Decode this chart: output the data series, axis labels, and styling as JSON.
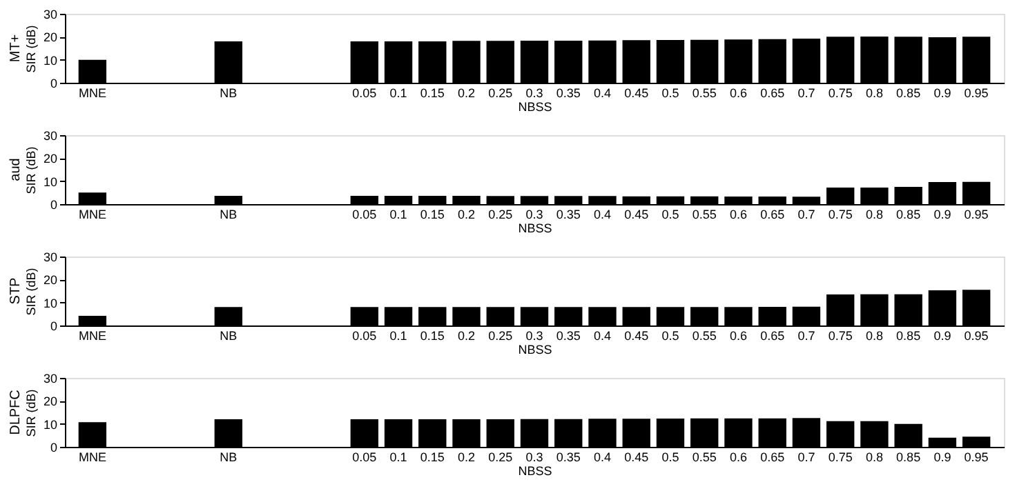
{
  "chart_data": [
    {
      "type": "bar",
      "title": "MT+",
      "xlabel": "NBSS",
      "ylabel": "SIR (dB)",
      "categories": [
        "MNE",
        null,
        null,
        null,
        "NB",
        null,
        null,
        null,
        "0.05",
        "0.1",
        "0.15",
        "0.2",
        "0.25",
        "0.3",
        "0.35",
        "0.4",
        "0.45",
        "0.5",
        "0.55",
        "0.6",
        "0.65",
        "0.7",
        "0.75",
        "0.8",
        "0.85",
        "0.9",
        "0.95"
      ],
      "values": [
        10,
        null,
        null,
        null,
        18,
        null,
        null,
        null,
        18,
        18,
        18,
        18.2,
        18.2,
        18.3,
        18.3,
        18.4,
        18.5,
        18.6,
        18.7,
        18.8,
        19,
        19.2,
        20,
        20.1,
        20,
        19.8,
        20
      ],
      "color": "#000000",
      "ylim": [
        0,
        30
      ],
      "yticks": [
        0,
        10,
        20,
        30
      ],
      "grid": false
    },
    {
      "type": "bar",
      "title": "aud",
      "xlabel": "NBSS",
      "ylabel": "SIR (dB)",
      "categories": [
        "MNE",
        null,
        null,
        null,
        "NB",
        null,
        null,
        null,
        "0.05",
        "0.1",
        "0.15",
        "0.2",
        "0.25",
        "0.3",
        "0.35",
        "0.4",
        "0.45",
        "0.5",
        "0.55",
        "0.6",
        "0.65",
        "0.7",
        "0.75",
        "0.8",
        "0.85",
        "0.9",
        "0.95"
      ],
      "values": [
        5,
        null,
        null,
        null,
        3.6,
        null,
        null,
        null,
        3.6,
        3.6,
        3.6,
        3.6,
        3.5,
        3.5,
        3.5,
        3.5,
        3.4,
        3.4,
        3.4,
        3.3,
        3.3,
        3.2,
        7.2,
        7.2,
        7.5,
        9.6,
        9.7
      ],
      "color": "#000000",
      "ylim": [
        0,
        30
      ],
      "yticks": [
        0,
        10,
        20,
        30
      ],
      "grid": false
    },
    {
      "type": "bar",
      "title": "STP",
      "xlabel": "NBSS",
      "ylabel": "SIR (dB)",
      "categories": [
        "MNE",
        null,
        null,
        null,
        "NB",
        null,
        null,
        null,
        "0.05",
        "0.1",
        "0.15",
        "0.2",
        "0.25",
        "0.3",
        "0.35",
        "0.4",
        "0.45",
        "0.5",
        "0.55",
        "0.6",
        "0.65",
        "0.7",
        "0.75",
        "0.8",
        "0.85",
        "0.9",
        "0.95"
      ],
      "values": [
        4.2,
        null,
        null,
        null,
        8,
        null,
        null,
        null,
        8,
        8,
        8,
        8,
        8,
        8,
        8,
        8,
        8,
        8,
        8,
        8,
        8.1,
        8.2,
        13.5,
        13.6,
        13.6,
        15.3,
        15.5
      ],
      "color": "#000000",
      "ylim": [
        0,
        30
      ],
      "yticks": [
        0,
        10,
        20,
        30
      ],
      "grid": false
    },
    {
      "type": "bar",
      "title": "DLPFC",
      "xlabel": "NBSS",
      "ylabel": "SIR (dB)",
      "categories": [
        "MNE",
        null,
        null,
        null,
        "NB",
        null,
        null,
        null,
        "0.05",
        "0.1",
        "0.15",
        "0.2",
        "0.25",
        "0.3",
        "0.35",
        "0.4",
        "0.45",
        "0.5",
        "0.55",
        "0.6",
        "0.65",
        "0.7",
        "0.75",
        "0.8",
        "0.85",
        "0.9",
        "0.95"
      ],
      "values": [
        10.7,
        null,
        null,
        null,
        12,
        null,
        null,
        null,
        12,
        12,
        12,
        12,
        12,
        12.1,
        12.1,
        12.2,
        12.2,
        12.3,
        12.4,
        12.4,
        12.4,
        12.5,
        11.2,
        11.2,
        10,
        4,
        4.4
      ],
      "color": "#000000",
      "ylim": [
        0,
        30
      ],
      "yticks": [
        0,
        10,
        20,
        30
      ],
      "grid": false
    }
  ]
}
